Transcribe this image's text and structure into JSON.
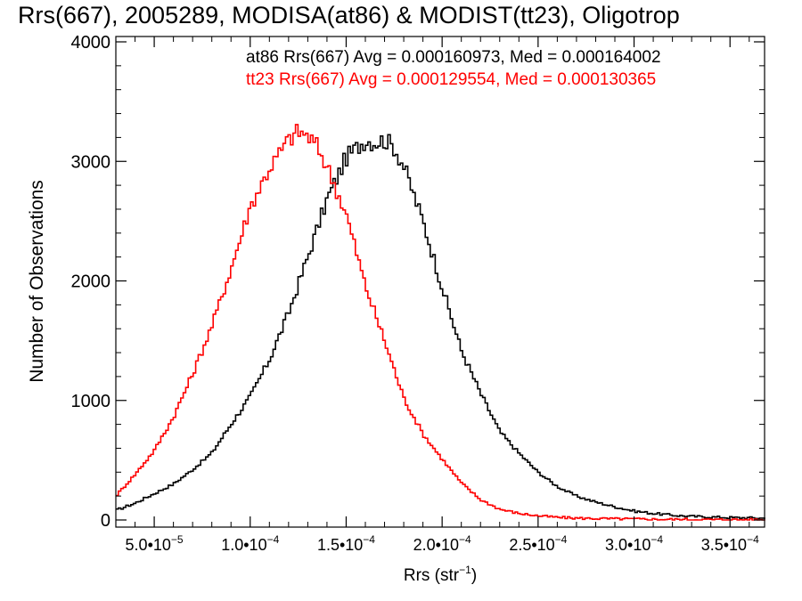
{
  "chart_data": {
    "type": "line",
    "title": "Rrs(667), 2005289, MODISA(at86) & MODIST(tt23), Oligotrop",
    "xlabel": "Rrs (str",
    "xlabel_sup": "−1",
    "xlabel_close": ")",
    "ylabel": "Number of Observations",
    "xlim": [
      3e-05,
      0.000368
    ],
    "ylim": [
      0,
      4000
    ],
    "grid": false,
    "line_style": "step",
    "x_ticks": [
      {
        "value": 5e-05,
        "mant": "5.0•10",
        "exp": "−5"
      },
      {
        "value": 0.0001,
        "mant": "1.0•10",
        "exp": "−4"
      },
      {
        "value": 0.00015,
        "mant": "1.5•10",
        "exp": "−4"
      },
      {
        "value": 0.0002,
        "mant": "2.0•10",
        "exp": "−4"
      },
      {
        "value": 0.00025,
        "mant": "2.5•10",
        "exp": "−4"
      },
      {
        "value": 0.0003,
        "mant": "3.0•10",
        "exp": "−4"
      },
      {
        "value": 0.00035,
        "mant": "3.5•10",
        "exp": "−4"
      }
    ],
    "y_ticks": [
      {
        "value": 0,
        "label": "0"
      },
      {
        "value": 1000,
        "label": "1000"
      },
      {
        "value": 2000,
        "label": "2000"
      },
      {
        "value": 3000,
        "label": "3000"
      },
      {
        "value": 4000,
        "label": "4000"
      }
    ],
    "annotations": [
      {
        "text": "at86 Rrs(667) Avg = 0.000160973, Med = 0.000164002",
        "color": "#000000"
      },
      {
        "text": "tt23 Rrs(667) Avg = 0.000129554, Med = 0.000130365",
        "color": "#ff0000"
      }
    ],
    "series": [
      {
        "color": "#000000",
        "x": [
          3e-05,
          4e-05,
          5e-05,
          6e-05,
          7e-05,
          8e-05,
          9e-05,
          0.0001,
          0.00011,
          0.00012,
          0.00013,
          0.00014,
          0.00015,
          0.00016,
          0.000165,
          0.00017,
          0.000175,
          0.00018,
          0.00019,
          0.0002,
          0.00021,
          0.00022,
          0.00023,
          0.00024,
          0.00025,
          0.00026,
          0.00027,
          0.00028,
          0.00029,
          0.0003,
          0.00031,
          0.00032,
          0.00033,
          0.00034,
          0.00035,
          0.00036,
          0.000368
        ],
        "y": [
          80,
          140,
          220,
          300,
          420,
          560,
          800,
          1030,
          1340,
          1730,
          2200,
          2680,
          3030,
          3180,
          3160,
          3180,
          3120,
          2960,
          2500,
          1950,
          1420,
          1060,
          740,
          560,
          400,
          280,
          200,
          150,
          110,
          75,
          55,
          40,
          30,
          25,
          20,
          18,
          15
        ]
      },
      {
        "color": "#ff0000",
        "x": [
          3e-05,
          4e-05,
          5e-05,
          6e-05,
          7e-05,
          8e-05,
          9e-05,
          0.0001,
          0.00011,
          0.00012,
          0.000125,
          0.00013,
          0.000135,
          0.00014,
          0.00015,
          0.00016,
          0.00017,
          0.00018,
          0.00019,
          0.0002,
          0.00021,
          0.00022,
          0.00023,
          0.00024,
          0.00025,
          0.00026,
          0.00027,
          0.00028,
          0.00029,
          0.0003,
          0.00031,
          0.00032,
          0.00033,
          0.00034,
          0.00035,
          0.00036,
          0.000368
        ],
        "y": [
          200,
          380,
          580,
          860,
          1220,
          1620,
          2100,
          2620,
          2940,
          3180,
          3250,
          3210,
          3120,
          2960,
          2560,
          1960,
          1500,
          1020,
          720,
          510,
          310,
          170,
          90,
          55,
          35,
          22,
          15,
          12,
          10,
          8,
          6,
          5,
          4,
          3,
          3,
          2,
          2
        ]
      }
    ]
  }
}
